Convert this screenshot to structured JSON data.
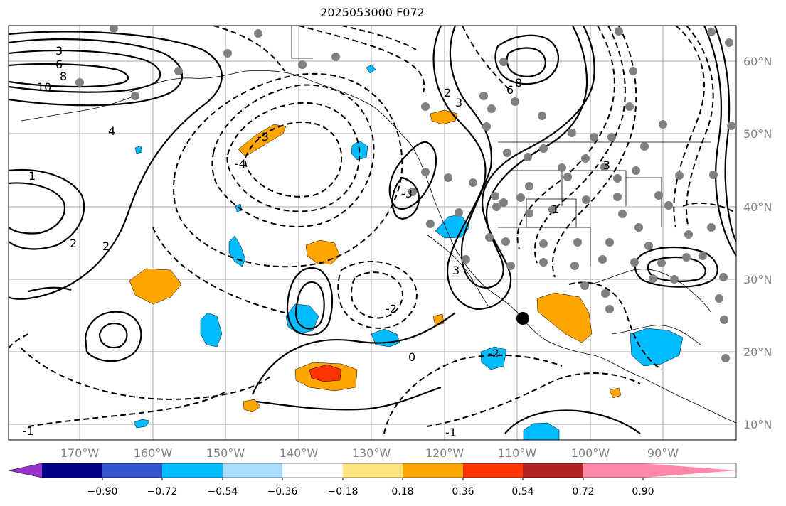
{
  "title": "2025053000 F072",
  "map": {
    "longitude_labels": [
      "170°W",
      "160°W",
      "150°W",
      "140°W",
      "130°W",
      "120°W",
      "110°W",
      "100°W",
      "90°W"
    ],
    "latitude_labels": [
      "60°N",
      "50°N",
      "40°N",
      "30°N",
      "20°N",
      "10°N"
    ],
    "contour_labels": [
      "3",
      "6",
      "8",
      "10",
      "1",
      "2",
      "4",
      "-3",
      "-4",
      "-2",
      "0",
      "-1",
      "3",
      "-3",
      "6",
      "8",
      "2",
      "-1",
      "3",
      "-3",
      "-2",
      "-1",
      "2"
    ]
  },
  "colorbar": {
    "tick_labels": [
      "−0.90",
      "−0.72",
      "−0.54",
      "−0.36",
      "−0.18",
      "0.18",
      "0.36",
      "0.54",
      "0.72",
      "0.90"
    ],
    "colors": [
      "#9933cc",
      "#000088",
      "#3355cc",
      "#00bbff",
      "#aaddff",
      "#ffffff",
      "#ffe680",
      "#ffa500",
      "#ff3300",
      "#b22222",
      "#ff88aa"
    ]
  }
}
